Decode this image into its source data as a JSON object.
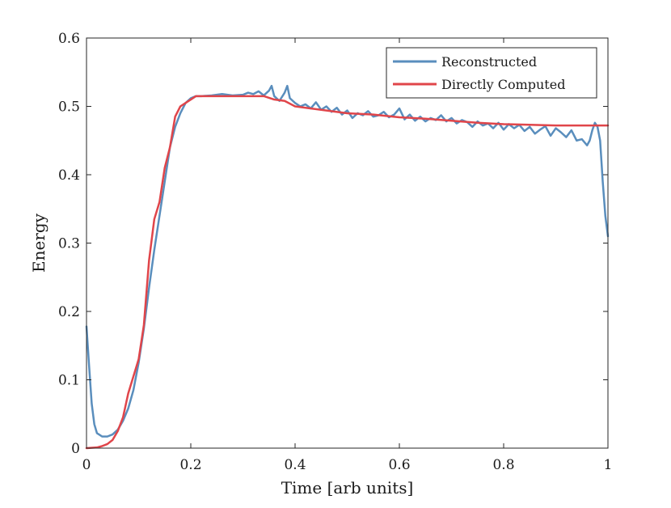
{
  "chart_data": {
    "type": "line",
    "title": "",
    "xlabel": "Time [arb units]",
    "ylabel": "Energy",
    "xlim": [
      0,
      1
    ],
    "ylim": [
      0,
      0.6
    ],
    "xticks": [
      0,
      0.2,
      0.4,
      0.6,
      0.8,
      1
    ],
    "xtick_labels": [
      "0",
      "0.2",
      "0.4",
      "0.6",
      "0.8",
      "1"
    ],
    "yticks": [
      0,
      0.1,
      0.2,
      0.3,
      0.4,
      0.5,
      0.6
    ],
    "ytick_labels": [
      "0",
      "0.1",
      "0.2",
      "0.3",
      "0.4",
      "0.5",
      "0.6"
    ],
    "grid": false,
    "legend_position": "top-right",
    "series": [
      {
        "name": "Reconstructed",
        "color": "#5a8ebd",
        "x": [
          0,
          0.005,
          0.01,
          0.015,
          0.02,
          0.03,
          0.04,
          0.05,
          0.06,
          0.07,
          0.08,
          0.09,
          0.1,
          0.11,
          0.12,
          0.13,
          0.14,
          0.15,
          0.16,
          0.17,
          0.18,
          0.19,
          0.2,
          0.21,
          0.22,
          0.24,
          0.26,
          0.28,
          0.3,
          0.31,
          0.32,
          0.33,
          0.34,
          0.35,
          0.355,
          0.36,
          0.37,
          0.38,
          0.385,
          0.39,
          0.4,
          0.41,
          0.42,
          0.43,
          0.44,
          0.45,
          0.46,
          0.47,
          0.48,
          0.49,
          0.5,
          0.51,
          0.52,
          0.53,
          0.54,
          0.55,
          0.56,
          0.57,
          0.58,
          0.59,
          0.6,
          0.61,
          0.62,
          0.63,
          0.64,
          0.65,
          0.66,
          0.67,
          0.68,
          0.69,
          0.7,
          0.71,
          0.72,
          0.73,
          0.74,
          0.75,
          0.76,
          0.77,
          0.78,
          0.79,
          0.8,
          0.81,
          0.82,
          0.83,
          0.84,
          0.85,
          0.86,
          0.87,
          0.88,
          0.89,
          0.9,
          0.91,
          0.92,
          0.93,
          0.94,
          0.95,
          0.96,
          0.965,
          0.97,
          0.975,
          0.98,
          0.985,
          0.99,
          0.995,
          1
        ],
        "values": [
          0.178,
          0.12,
          0.065,
          0.035,
          0.022,
          0.017,
          0.017,
          0.02,
          0.027,
          0.04,
          0.058,
          0.085,
          0.125,
          0.175,
          0.235,
          0.29,
          0.34,
          0.39,
          0.44,
          0.47,
          0.49,
          0.505,
          0.512,
          0.515,
          0.515,
          0.516,
          0.518,
          0.516,
          0.517,
          0.52,
          0.518,
          0.522,
          0.516,
          0.523,
          0.53,
          0.515,
          0.508,
          0.52,
          0.53,
          0.512,
          0.505,
          0.5,
          0.503,
          0.497,
          0.506,
          0.495,
          0.5,
          0.492,
          0.498,
          0.488,
          0.494,
          0.483,
          0.49,
          0.487,
          0.493,
          0.485,
          0.487,
          0.492,
          0.484,
          0.488,
          0.497,
          0.481,
          0.488,
          0.479,
          0.485,
          0.478,
          0.483,
          0.48,
          0.487,
          0.478,
          0.483,
          0.475,
          0.48,
          0.477,
          0.47,
          0.478,
          0.472,
          0.475,
          0.468,
          0.476,
          0.466,
          0.474,
          0.468,
          0.473,
          0.464,
          0.47,
          0.46,
          0.466,
          0.471,
          0.457,
          0.468,
          0.462,
          0.455,
          0.465,
          0.45,
          0.452,
          0.443,
          0.45,
          0.465,
          0.476,
          0.47,
          0.45,
          0.39,
          0.34,
          0.31
        ]
      },
      {
        "name": "Directly Computed",
        "color": "#e0454a",
        "x": [
          0,
          0.02,
          0.03,
          0.04,
          0.05,
          0.06,
          0.07,
          0.08,
          0.09,
          0.1,
          0.11,
          0.12,
          0.13,
          0.14,
          0.15,
          0.16,
          0.17,
          0.18,
          0.19,
          0.2,
          0.21,
          0.22,
          0.24,
          0.26,
          0.28,
          0.3,
          0.32,
          0.34,
          0.36,
          0.38,
          0.4,
          0.45,
          0.5,
          0.55,
          0.6,
          0.65,
          0.7,
          0.75,
          0.8,
          0.85,
          0.9,
          0.95,
          1
        ],
        "values": [
          0,
          0.001,
          0.003,
          0.006,
          0.012,
          0.025,
          0.045,
          0.08,
          0.105,
          0.13,
          0.18,
          0.275,
          0.335,
          0.36,
          0.41,
          0.44,
          0.485,
          0.5,
          0.505,
          0.51,
          0.515,
          0.515,
          0.515,
          0.515,
          0.515,
          0.515,
          0.515,
          0.515,
          0.51,
          0.508,
          0.5,
          0.495,
          0.49,
          0.488,
          0.484,
          0.482,
          0.479,
          0.476,
          0.474,
          0.473,
          0.472,
          0.472,
          0.472
        ]
      }
    ]
  }
}
